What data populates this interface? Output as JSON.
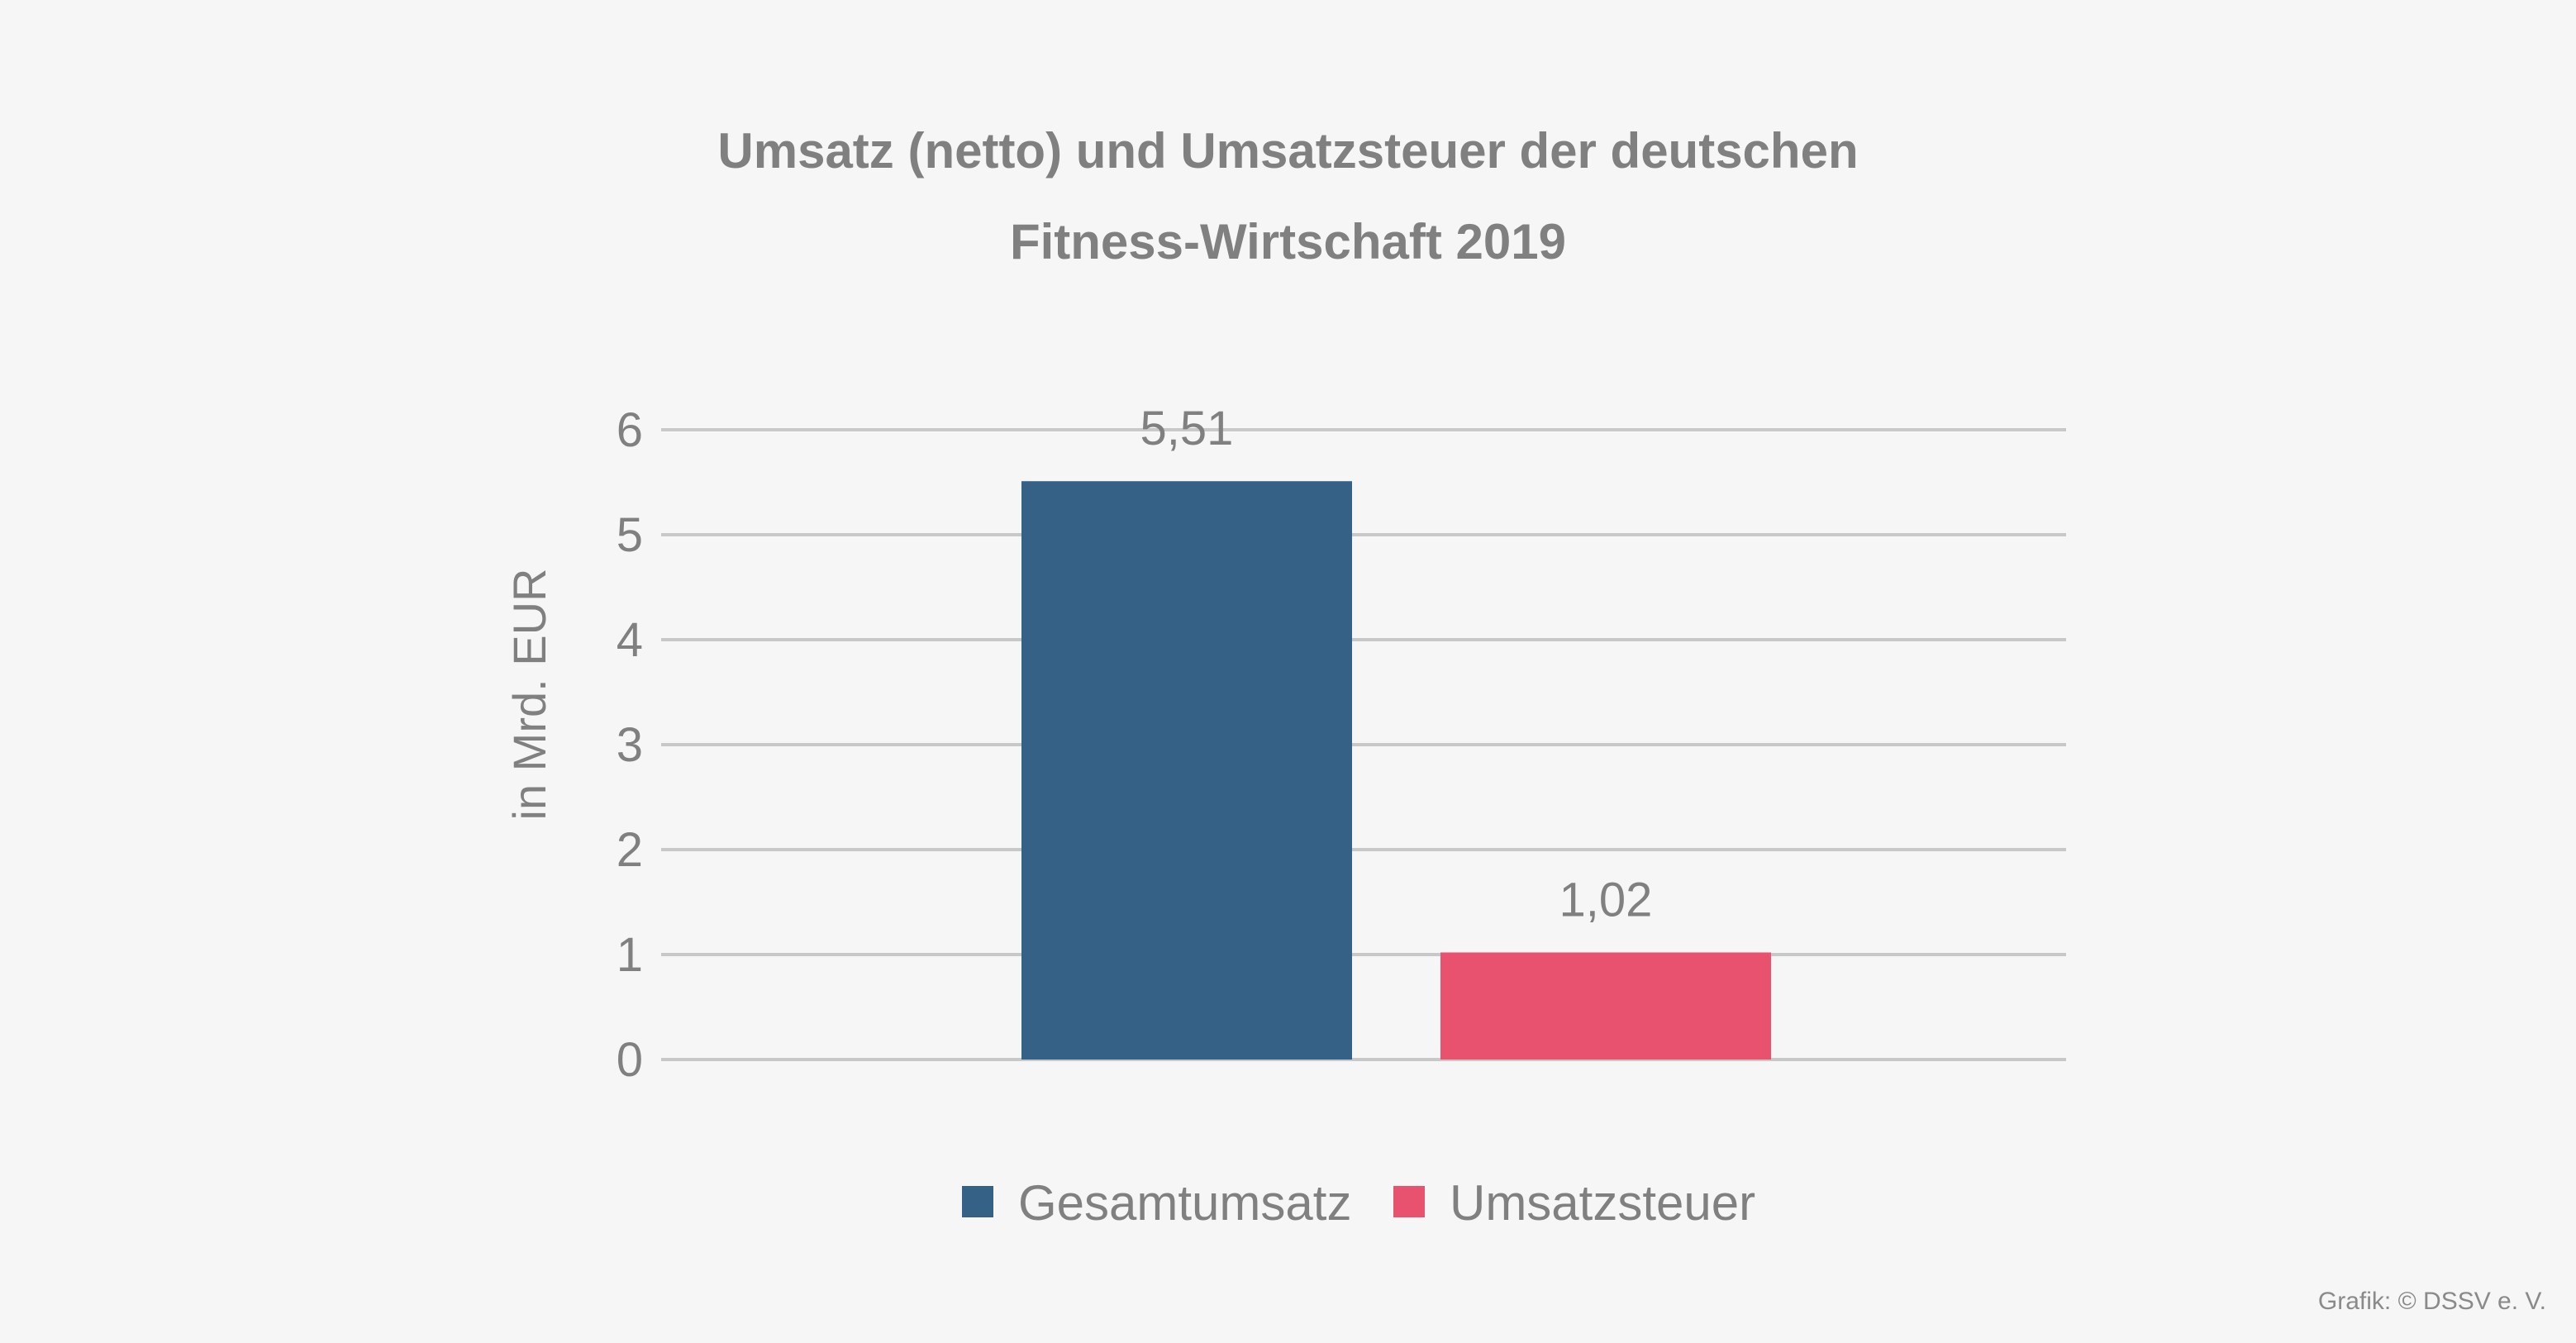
{
  "chart_data": {
    "type": "bar",
    "title_lines": [
      "Umsatz (netto) und Umsatzsteuer der deutschen",
      "Fitness-Wirtschaft 2019"
    ],
    "ylabel": "in Mrd. EUR",
    "xlabel": "",
    "ylim": [
      0,
      6
    ],
    "yticks": [
      "0",
      "1",
      "2",
      "3",
      "4",
      "5",
      "6"
    ],
    "grid": true,
    "legend_position": "bottom-center",
    "series": [
      {
        "name": "Gesamtumsatz",
        "values": [
          5.51
        ],
        "label": "5,51",
        "color": "#366186"
      },
      {
        "name": "Umsatzsteuer",
        "values": [
          1.02
        ],
        "label": "1,02",
        "color": "#e9526f"
      }
    ]
  },
  "credit": "Grafik: © DSSV e. V.",
  "colors": {
    "background": "#f6f6f6",
    "grid": "#c8c8c8",
    "text": "#808080"
  }
}
